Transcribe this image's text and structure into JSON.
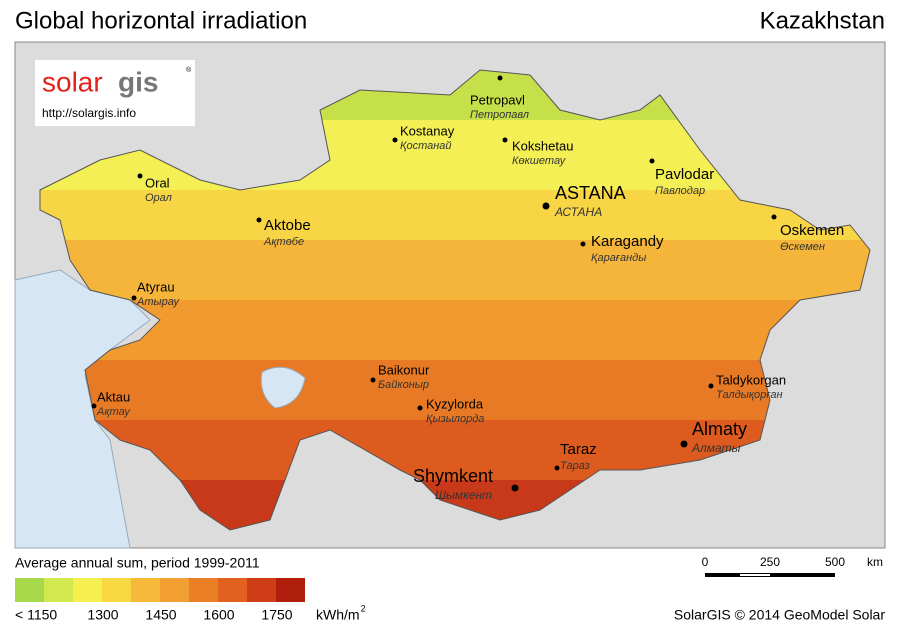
{
  "header": {
    "title": "Global horizontal irradiation",
    "country": "Kazakhstan"
  },
  "logo": {
    "brand_solar": "solar",
    "brand_gis": "gis",
    "registered": "®",
    "url": "http://solargis.info"
  },
  "cities": [
    {
      "name": "Petropavl",
      "local": "Петропавл"
    },
    {
      "name": "Kostanay",
      "local": "Қостанай"
    },
    {
      "name": "Kokshetau",
      "local": "Көкшетау"
    },
    {
      "name": "Pavlodar",
      "local": "Павлодар"
    },
    {
      "name": "ASTANA",
      "local": "АСТАНА"
    },
    {
      "name": "Oral",
      "local": "Орал"
    },
    {
      "name": "Aktobe",
      "local": "Ақтөбе"
    },
    {
      "name": "Oskemen",
      "local": "Өскемен"
    },
    {
      "name": "Karagandy",
      "local": "Қарағанды"
    },
    {
      "name": "Atyrau",
      "local": "Атырау"
    },
    {
      "name": "Baikonur",
      "local": "Байконыр"
    },
    {
      "name": "Kyzylorda",
      "local": "Қызылорда"
    },
    {
      "name": "Taldykorgan",
      "local": "Талдықорған"
    },
    {
      "name": "Aktau",
      "local": "Ақтау"
    },
    {
      "name": "Almaty",
      "local": "Алматы"
    },
    {
      "name": "Taraz",
      "local": "Тараз"
    },
    {
      "name": "Shymkent",
      "local": "Шымкент"
    }
  ],
  "legend": {
    "title": "Average annual sum, period 1999-2011",
    "colors": [
      "#a6d84a",
      "#d2e84f",
      "#f5f050",
      "#f7d840",
      "#f6b93a",
      "#f19f30",
      "#ea7f26",
      "#e26121",
      "#cf3d17",
      "#b01e0c"
    ],
    "labels": [
      "< 1150",
      "1300",
      "1450",
      "1600",
      "1750"
    ],
    "unit": "kWh/m",
    "unit_sup": "2"
  },
  "scale": {
    "labels": [
      "0",
      "250",
      "500"
    ],
    "unit": "km"
  },
  "credit": "SolarGIS © 2014 GeoModel Solar"
}
